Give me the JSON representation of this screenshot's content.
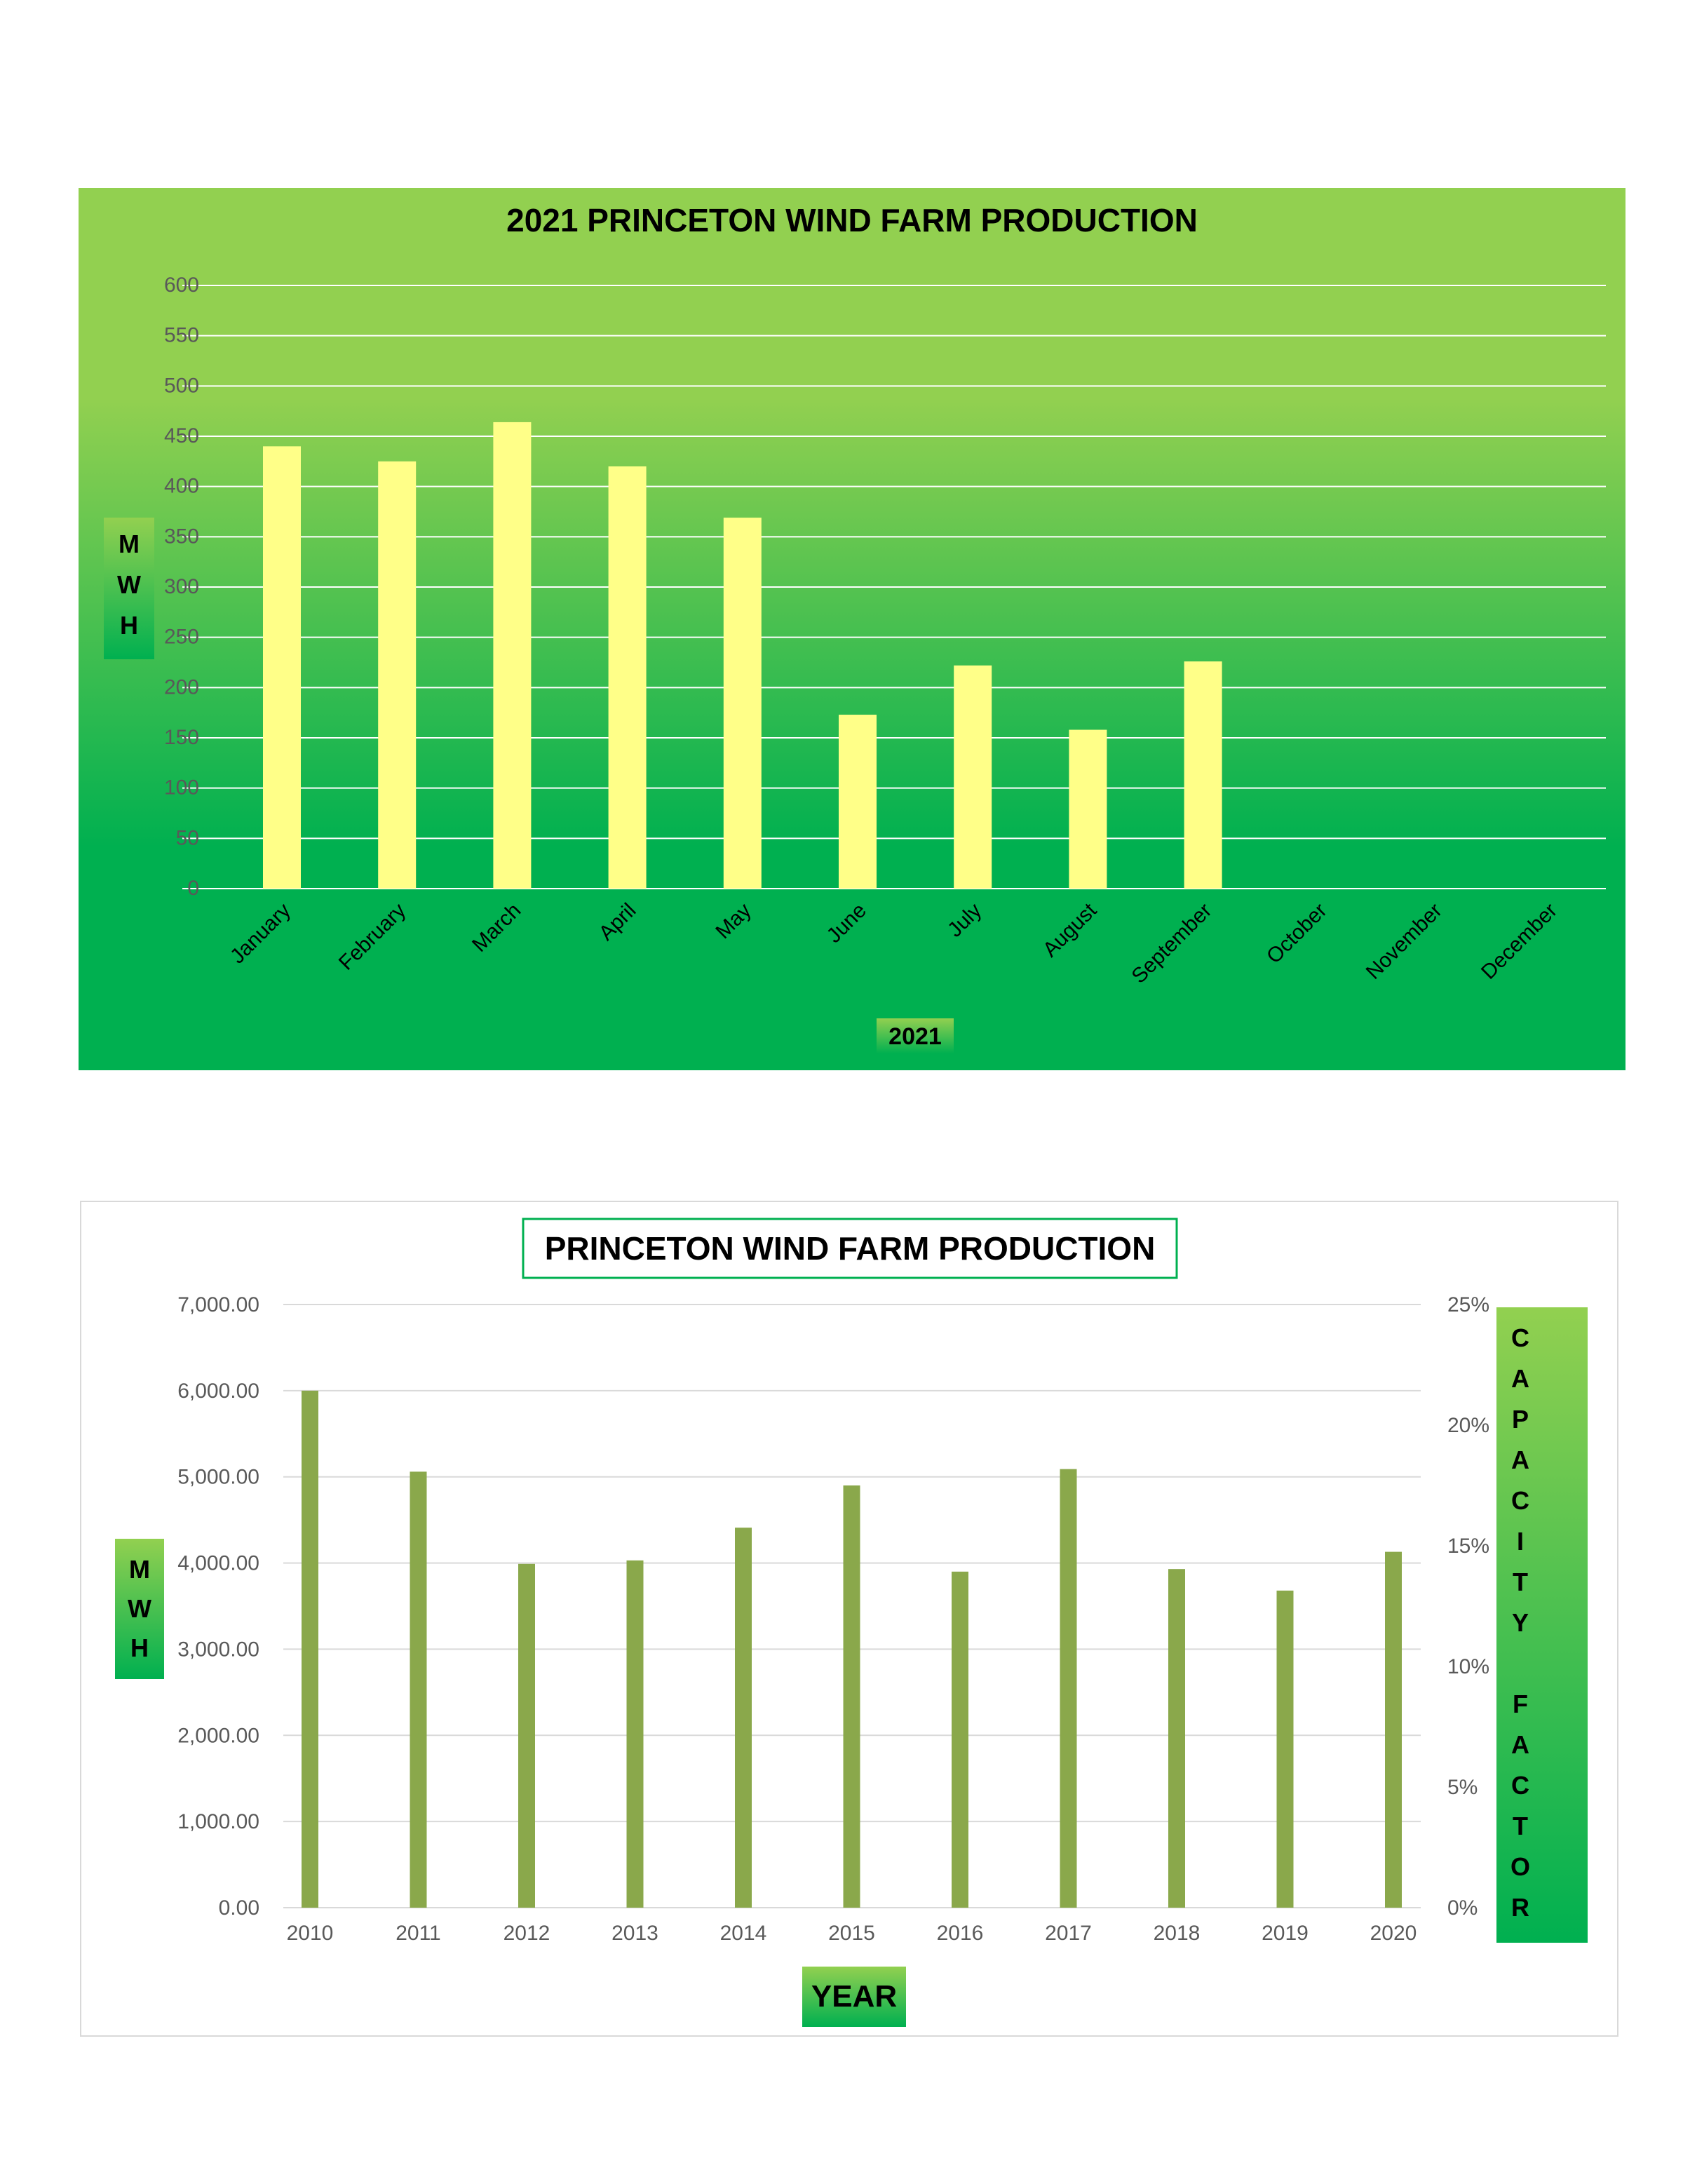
{
  "chart_data": [
    {
      "type": "bar",
      "title": "2021 PRINCETON WIND FARM PRODUCTION",
      "ylabel": "MWH",
      "xlabel": "2021",
      "ylim": [
        0,
        600
      ],
      "yticks": [
        0,
        50,
        100,
        150,
        200,
        250,
        300,
        350,
        400,
        450,
        500,
        550,
        600
      ],
      "categories": [
        "January",
        "February",
        "March",
        "April",
        "May",
        "June",
        "July",
        "August",
        "September",
        "October",
        "November",
        "December"
      ],
      "values": [
        440,
        425,
        464,
        420,
        369,
        173,
        222,
        158,
        226,
        null,
        null,
        null
      ],
      "grid": true,
      "colors": {
        "bar": "#ffff88",
        "background_top": "#92d050",
        "background_bottom": "#00b050",
        "gridline": "#ffffff"
      }
    },
    {
      "type": "bar",
      "title": "PRINCETON WIND FARM PRODUCTION",
      "ylabel": "MWH",
      "y2label": "CAPACITY FACTOR",
      "xlabel": "YEAR",
      "ylim": [
        0,
        7000
      ],
      "yticks": [
        "0.00",
        "1,000.00",
        "2,000.00",
        "3,000.00",
        "4,000.00",
        "5,000.00",
        "6,000.00",
        "7,000.00"
      ],
      "y2lim": [
        0,
        25
      ],
      "y2ticks": [
        "0%",
        "5%",
        "10%",
        "15%",
        "20%",
        "25%"
      ],
      "categories": [
        "2010",
        "2011",
        "2012",
        "2013",
        "2014",
        "2015",
        "2016",
        "2017",
        "2018",
        "2019",
        "2020"
      ],
      "values": [
        6000,
        5060,
        3990,
        4030,
        4410,
        4900,
        3900,
        5090,
        3930,
        3680,
        4130
      ],
      "grid": true,
      "colors": {
        "bar": "#8aa84b",
        "gridline": "#d9d9d9",
        "title_border": "#00b050",
        "label_top": "#92d050",
        "label_bottom": "#00b050"
      }
    }
  ]
}
